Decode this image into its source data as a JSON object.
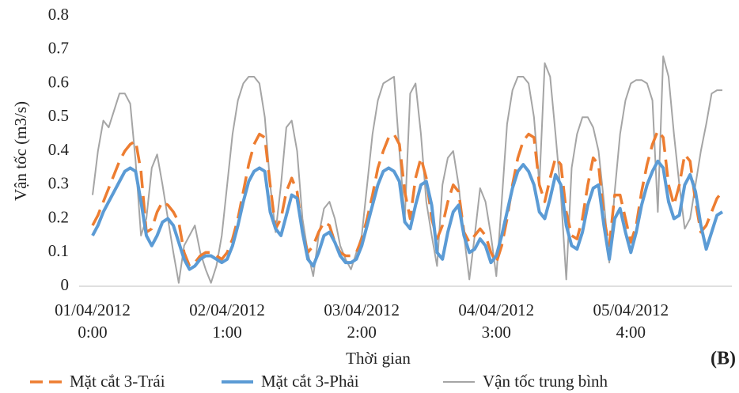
{
  "chart_data": {
    "type": "line",
    "y_label": "Vận tốc (m3/s)",
    "x_label": "Thời gian",
    "annotation": "(B)",
    "ylim": [
      0,
      0.8
    ],
    "yticks": [
      0,
      0.1,
      0.2,
      0.3,
      0.4,
      0.5,
      0.6,
      0.7,
      0.8
    ],
    "grid": false,
    "legend": "bottom",
    "categories": [
      "01/04/2012\n0:00",
      null,
      null,
      null,
      null,
      null,
      null,
      null,
      null,
      null,
      null,
      null,
      null,
      null,
      null,
      null,
      null,
      null,
      null,
      null,
      null,
      null,
      null,
      null,
      null,
      "02/04/2012\n1:00",
      null,
      null,
      null,
      null,
      null,
      null,
      null,
      null,
      null,
      null,
      null,
      null,
      null,
      null,
      null,
      null,
      null,
      null,
      null,
      null,
      null,
      null,
      null,
      null,
      "03/04/2012\n2:00",
      null,
      null,
      null,
      null,
      null,
      null,
      null,
      null,
      null,
      null,
      null,
      null,
      null,
      null,
      null,
      null,
      null,
      null,
      null,
      null,
      null,
      null,
      null,
      null,
      "04/04/2012\n3:00",
      null,
      null,
      null,
      null,
      null,
      null,
      null,
      null,
      null,
      null,
      null,
      null,
      null,
      null,
      null,
      null,
      null,
      null,
      null,
      null,
      null,
      null,
      null,
      null,
      "05/04/2012\n4:00",
      null,
      null,
      null,
      null,
      null,
      null,
      null,
      null,
      null,
      null,
      null,
      null,
      null,
      null,
      null,
      null,
      null
    ],
    "series": [
      {
        "name": "Mặt cắt 3-Trái",
        "color": "#ed7d31",
        "style": "dashed",
        "width": 3.5,
        "values": [
          0.18,
          0.21,
          0.25,
          0.29,
          0.33,
          0.37,
          0.4,
          0.42,
          0.43,
          0.34,
          0.16,
          0.17,
          0.22,
          0.25,
          0.24,
          0.22,
          0.19,
          0.1,
          0.06,
          0.07,
          0.09,
          0.1,
          0.1,
          0.09,
          0.08,
          0.1,
          0.14,
          0.2,
          0.28,
          0.36,
          0.42,
          0.45,
          0.44,
          0.3,
          0.17,
          0.2,
          0.28,
          0.32,
          0.28,
          0.16,
          0.1,
          0.12,
          0.16,
          0.19,
          0.18,
          0.13,
          0.1,
          0.09,
          0.09,
          0.1,
          0.14,
          0.2,
          0.27,
          0.35,
          0.4,
          0.44,
          0.45,
          0.42,
          0.28,
          0.2,
          0.32,
          0.38,
          0.32,
          0.2,
          0.14,
          0.18,
          0.25,
          0.3,
          0.28,
          0.16,
          0.13,
          0.15,
          0.17,
          0.15,
          0.1,
          0.07,
          0.12,
          0.2,
          0.3,
          0.38,
          0.43,
          0.45,
          0.44,
          0.3,
          0.25,
          0.32,
          0.38,
          0.36,
          0.22,
          0.15,
          0.14,
          0.2,
          0.3,
          0.38,
          0.36,
          0.2,
          0.12,
          0.27,
          0.27,
          0.2,
          0.13,
          0.18,
          0.28,
          0.36,
          0.42,
          0.46,
          0.44,
          0.3,
          0.24,
          0.3,
          0.39,
          0.37,
          0.25,
          0.16,
          0.18,
          0.22,
          0.26,
          0.28
        ]
      },
      {
        "name": "Mặt cắt 3-Phải",
        "color": "#5b9bd5",
        "style": "solid",
        "width": 4,
        "values": [
          0.15,
          0.18,
          0.22,
          0.25,
          0.28,
          0.31,
          0.34,
          0.35,
          0.34,
          0.25,
          0.15,
          0.12,
          0.15,
          0.19,
          0.2,
          0.18,
          0.13,
          0.08,
          0.05,
          0.06,
          0.08,
          0.09,
          0.09,
          0.08,
          0.07,
          0.08,
          0.12,
          0.18,
          0.25,
          0.31,
          0.34,
          0.35,
          0.34,
          0.22,
          0.17,
          0.15,
          0.21,
          0.27,
          0.26,
          0.16,
          0.08,
          0.06,
          0.1,
          0.15,
          0.16,
          0.13,
          0.09,
          0.07,
          0.07,
          0.08,
          0.12,
          0.18,
          0.24,
          0.3,
          0.34,
          0.35,
          0.34,
          0.31,
          0.19,
          0.17,
          0.24,
          0.3,
          0.31,
          0.24,
          0.1,
          0.08,
          0.16,
          0.22,
          0.24,
          0.15,
          0.1,
          0.11,
          0.14,
          0.12,
          0.07,
          0.09,
          0.15,
          0.22,
          0.29,
          0.34,
          0.36,
          0.34,
          0.3,
          0.22,
          0.2,
          0.26,
          0.33,
          0.3,
          0.18,
          0.12,
          0.11,
          0.16,
          0.24,
          0.29,
          0.3,
          0.18,
          0.08,
          0.2,
          0.23,
          0.16,
          0.1,
          0.16,
          0.24,
          0.3,
          0.34,
          0.37,
          0.35,
          0.25,
          0.2,
          0.21,
          0.3,
          0.33,
          0.28,
          0.18,
          0.11,
          0.16,
          0.21,
          0.22
        ]
      },
      {
        "name": "Vận tốc trung bình",
        "color": "#a5a5a5",
        "style": "solid",
        "width": 2,
        "values": [
          0.27,
          0.4,
          0.49,
          0.47,
          0.52,
          0.57,
          0.57,
          0.54,
          0.37,
          0.15,
          0.2,
          0.35,
          0.39,
          0.3,
          0.2,
          0.1,
          0.01,
          0.12,
          0.15,
          0.18,
          0.1,
          0.05,
          0.01,
          0.06,
          0.15,
          0.3,
          0.45,
          0.55,
          0.6,
          0.62,
          0.62,
          0.6,
          0.5,
          0.3,
          0.16,
          0.3,
          0.47,
          0.49,
          0.4,
          0.2,
          0.1,
          0.03,
          0.15,
          0.23,
          0.25,
          0.2,
          0.12,
          0.08,
          0.05,
          0.1,
          0.15,
          0.3,
          0.45,
          0.55,
          0.6,
          0.61,
          0.62,
          0.4,
          0.2,
          0.57,
          0.6,
          0.45,
          0.25,
          0.15,
          0.06,
          0.3,
          0.38,
          0.4,
          0.3,
          0.15,
          0.02,
          0.15,
          0.29,
          0.25,
          0.15,
          0.03,
          0.25,
          0.48,
          0.58,
          0.62,
          0.62,
          0.6,
          0.5,
          0.3,
          0.66,
          0.62,
          0.45,
          0.27,
          0.02,
          0.35,
          0.45,
          0.5,
          0.5,
          0.47,
          0.4,
          0.25,
          0.07,
          0.28,
          0.45,
          0.55,
          0.6,
          0.61,
          0.61,
          0.6,
          0.55,
          0.22,
          0.68,
          0.62,
          0.45,
          0.3,
          0.17,
          0.2,
          0.3,
          0.4,
          0.48,
          0.57,
          0.58,
          0.58
        ]
      }
    ]
  }
}
